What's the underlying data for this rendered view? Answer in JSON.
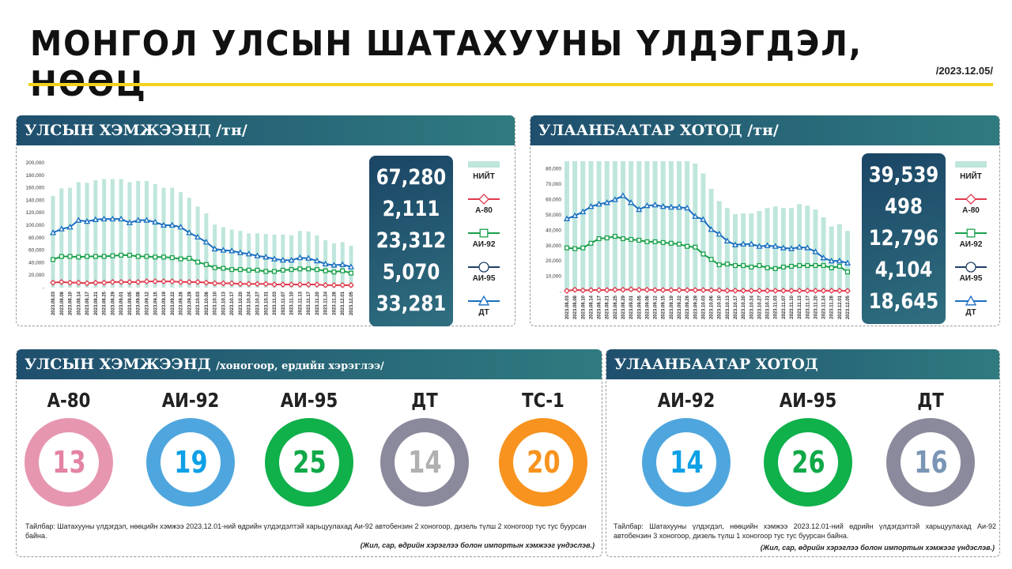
{
  "header": {
    "title": "МОНГОЛ УЛСЫН ШАТАХУУНЫ ҮЛДЭГДЭЛ, НӨӨЦ",
    "date": "/2023.12.05/"
  },
  "colors": {
    "total": "#bfe6dc",
    "a80": "#e23a4e",
    "ai92": "#18a04a",
    "ai95": "#1f3f66",
    "dt": "#1a6fc0",
    "yellow": "#f2d21c",
    "header": "#1f4f6e"
  },
  "national": {
    "title": "УЛСЫН ХЭМЖЭЭНД /тн/",
    "values": [
      "67,280",
      "2,111",
      "23,312",
      "5,070",
      "33,281"
    ]
  },
  "ub": {
    "title": "УЛААНБААТАР ХОТОД /тн/",
    "values": [
      "39,539",
      "498",
      "12,796",
      "4,104",
      "18,645"
    ]
  },
  "legend": [
    "НИЙТ",
    "А-80",
    "АИ-92",
    "АИ-95",
    "ДТ"
  ],
  "chart_data": [
    {
      "type": "bar+line",
      "ylim": [
        0,
        200000
      ],
      "yticks": [
        "-",
        "20,000",
        "40,000",
        "60,000",
        "80,000",
        "100,000",
        "120,000",
        "140,000",
        "160,000",
        "180,000",
        "200,000"
      ],
      "categories": [
        "2023.08.03",
        "2023.08.08",
        "2023.08.10",
        "2023.08.14",
        "2023.08.17",
        "2023.08.21",
        "2023.08.25",
        "2023.08.29",
        "2023.09.01",
        "2023.09.05",
        "2023.09.08",
        "2023.09.12",
        "2023.09.15",
        "2023.09.19",
        "2023.09.22",
        "2023.09.26",
        "2023.09.29",
        "2023.10.03",
        "2023.10.06",
        "2023.10.10",
        "2023.10.13",
        "2023.10.17",
        "2023.10.20",
        "2023.10.24",
        "2023.10.27",
        "2023.10.31",
        "2023.11.03",
        "2023.11.07",
        "2023.11.10",
        "2023.11.13",
        "2023.11.17",
        "2023.11.20",
        "2023.11.24",
        "2023.11.28",
        "2023.12.01",
        "2023.12.05"
      ],
      "series": [
        {
          "name": "НИЙТ",
          "kind": "bar",
          "values": [
            147000,
            159000,
            160000,
            169000,
            168000,
            172000,
            174000,
            174000,
            174000,
            169000,
            171000,
            171000,
            166000,
            160000,
            160000,
            153000,
            144000,
            130000,
            119000,
            101000,
            97000,
            93000,
            91000,
            87000,
            87000,
            86000,
            85000,
            85000,
            84000,
            91000,
            90000,
            84000,
            76000,
            71000,
            73000,
            67280
          ]
        },
        {
          "name": "А-80",
          "kind": "line",
          "marker": "diamond",
          "values": [
            8000,
            9000,
            8000,
            8000,
            7000,
            8000,
            8000,
            9000,
            9000,
            9000,
            9000,
            10000,
            10000,
            10000,
            10000,
            9000,
            9000,
            9000,
            8000,
            7000,
            7000,
            7000,
            6000,
            6000,
            6000,
            6000,
            5000,
            5000,
            5000,
            5000,
            5000,
            5000,
            4000,
            4000,
            4000,
            4000
          ]
        },
        {
          "name": "АИ-92",
          "kind": "line",
          "marker": "square",
          "values": [
            45000,
            50000,
            50000,
            49000,
            50000,
            50000,
            50000,
            51000,
            52000,
            52000,
            50000,
            50000,
            49000,
            49000,
            48000,
            46000,
            47000,
            41000,
            37000,
            32000,
            31000,
            29000,
            29000,
            28000,
            28000,
            26000,
            26000,
            28000,
            29000,
            30000,
            30000,
            29000,
            27000,
            25000,
            27000,
            23312
          ]
        },
        {
          "name": "ДТ",
          "kind": "line",
          "marker": "triangle",
          "values": [
            88000,
            94000,
            97000,
            108000,
            106000,
            109000,
            110000,
            110000,
            110000,
            104000,
            108000,
            108000,
            105000,
            100000,
            100000,
            97000,
            88000,
            81000,
            73000,
            62000,
            60000,
            59000,
            56000,
            54000,
            51000,
            49000,
            46000,
            44000,
            44000,
            48000,
            47000,
            43000,
            38000,
            36000,
            37000,
            33281
          ]
        }
      ]
    },
    {
      "type": "bar+line",
      "ylim": [
        0,
        85000
      ],
      "yticks": [
        "-",
        "10,000",
        "20,000",
        "30,000",
        "40,000",
        "50,000",
        "60,000",
        "70,000",
        "80,000"
      ],
      "categories": [
        "2023.08.03",
        "2023.08.08",
        "2023.08.10",
        "2023.08.14",
        "2023.08.17",
        "2023.08.21",
        "2023.08.25",
        "2023.08.29",
        "2023.09.01",
        "2023.09.05",
        "2023.09.08",
        "2023.09.12",
        "2023.09.15",
        "2023.09.19",
        "2023.09.22",
        "2023.09.26",
        "2023.09.29",
        "2023.10.03",
        "2023.10.06",
        "2023.10.10",
        "2023.10.13",
        "2023.10.17",
        "2023.10.20",
        "2023.10.24",
        "2023.10.27",
        "2023.10.31",
        "2023.11.03",
        "2023.11.07",
        "2023.11.10",
        "2023.11.13",
        "2023.11.17",
        "2023.11.20",
        "2023.11.24",
        "2023.11.28",
        "2023.12.01",
        "2023.12.05"
      ],
      "series": [
        {
          "name": "НИЙТ",
          "kind": "bar",
          "values": [
            85000,
            85000,
            85000,
            85000,
            85000,
            85000,
            85000,
            85000,
            85000,
            85000,
            85000,
            85000,
            85000,
            85000,
            85000,
            85000,
            83500,
            77000,
            67000,
            59000,
            54500,
            50500,
            51000,
            51000,
            52500,
            54500,
            55500,
            54500,
            54500,
            57000,
            56000,
            53500,
            48500,
            42500,
            44000,
            39539
          ]
        },
        {
          "name": "А-80",
          "kind": "line",
          "marker": "diamond",
          "values": [
            500,
            1200,
            800,
            1000,
            1000,
            1000,
            1200,
            1200,
            1500,
            1200,
            1200,
            1000,
            1000,
            1000,
            1000,
            1000,
            1000,
            1000,
            900,
            900,
            600,
            600,
            600,
            600,
            600,
            600,
            600,
            600,
            600,
            600,
            600,
            600,
            600,
            600,
            600,
            498
          ]
        },
        {
          "name": "АИ-92",
          "kind": "line",
          "marker": "square",
          "values": [
            28500,
            28000,
            28500,
            31500,
            34500,
            35000,
            36000,
            34500,
            34000,
            33500,
            32500,
            32500,
            32000,
            31500,
            31000,
            29500,
            29000,
            24500,
            21000,
            17500,
            18000,
            17000,
            17000,
            16000,
            17000,
            15500,
            15000,
            16000,
            16500,
            17000,
            17000,
            17000,
            17000,
            15500,
            16500,
            12796
          ]
        },
        {
          "name": "ДТ",
          "kind": "line",
          "marker": "triangle",
          "values": [
            47500,
            49500,
            52000,
            55500,
            57000,
            58000,
            60000,
            62500,
            58000,
            53500,
            56000,
            56500,
            55500,
            55000,
            55000,
            54500,
            49000,
            47000,
            40500,
            37500,
            33000,
            30500,
            31000,
            31000,
            29500,
            30000,
            29500,
            28500,
            28000,
            29000,
            28500,
            26000,
            22000,
            20000,
            20000,
            18645
          ]
        }
      ]
    }
  ],
  "days_national": {
    "title": "УЛСЫН ХЭМЖЭЭНД",
    "subtitle": "/хоногоор, ердийн хэрэглээ/",
    "items": [
      {
        "label": "А-80",
        "value": "13",
        "ring": "#e796b0",
        "text": "#e383a5"
      },
      {
        "label": "АИ-92",
        "value": "19",
        "ring": "#4fa6de",
        "text": "#0fa0e6"
      },
      {
        "label": "АИ-95",
        "value": "25",
        "ring": "#10b04b",
        "text": "#10a848"
      },
      {
        "label": "ДТ",
        "value": "14",
        "ring": "#8a8a9c",
        "text": "#b0b0b0"
      },
      {
        "label": "ТС-1",
        "value": "20",
        "ring": "#f7931e",
        "text": "#f7931e"
      }
    ],
    "note": "Тайлбар: Шатахууны үлдэгдэл, нөөцийн хэмжээ 2023.12.01-ний өдрийн үлдэгдэлтэй харьцуулахад Аи-92 автобензин 2 хоногоор, дизель түлш 2 хоногоор тус тус буурсан байна.",
    "source": "(Жил, сар, өдрийн хэрэглээ болон импортын хэмжээг үндэслэв.)"
  },
  "days_ub": {
    "title": "УЛААНБААТАР ХОТОД",
    "items": [
      {
        "label": "АИ-92",
        "value": "14",
        "ring": "#4fa6de",
        "text": "#0fa0e6"
      },
      {
        "label": "АИ-95",
        "value": "26",
        "ring": "#10b04b",
        "text": "#10a848"
      },
      {
        "label": "ДТ",
        "value": "16",
        "ring": "#8a8a9c",
        "text": "#7a95b5"
      }
    ],
    "note": "Тайлбар: Шатахууны үлдэгдэл, нөөцийн хэмжээ 2023.12.01-ний өдрийн үлдэгдэлтэй харьцуулахад Аи-92 автобензин 3 хоногоор, дизель түлш 1 хоногоор тус тус буурсан байна.",
    "source": "(Жил, сар, өдрийн хэрэглээ болон импортын хэмжээг үндэслэв.)"
  }
}
